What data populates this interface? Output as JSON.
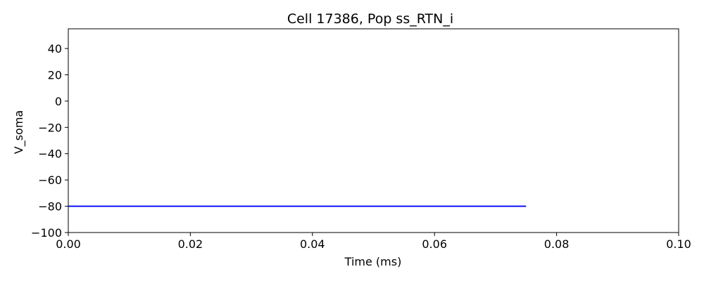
{
  "chart_data": {
    "type": "line",
    "title": "Cell 17386, Pop ss_RTN_i",
    "xlabel": "Time (ms)",
    "ylabel": "V_soma",
    "xlim": [
      0.0,
      0.1
    ],
    "ylim": [
      -100,
      55
    ],
    "xticks": [
      0.0,
      0.02,
      0.04,
      0.06,
      0.08,
      0.1
    ],
    "xtick_labels": [
      "0.00",
      "0.02",
      "0.04",
      "0.06",
      "0.08",
      "0.10"
    ],
    "yticks": [
      -100,
      -80,
      -60,
      -40,
      -20,
      0,
      20,
      40
    ],
    "ytick_labels": [
      "−100",
      "−80",
      "−60",
      "−40",
      "−20",
      "0",
      "20",
      "40"
    ],
    "grid": false,
    "series": [
      {
        "color": "#0000ff",
        "x": [
          0.0,
          0.075
        ],
        "y": [
          -80,
          -80
        ]
      }
    ]
  }
}
